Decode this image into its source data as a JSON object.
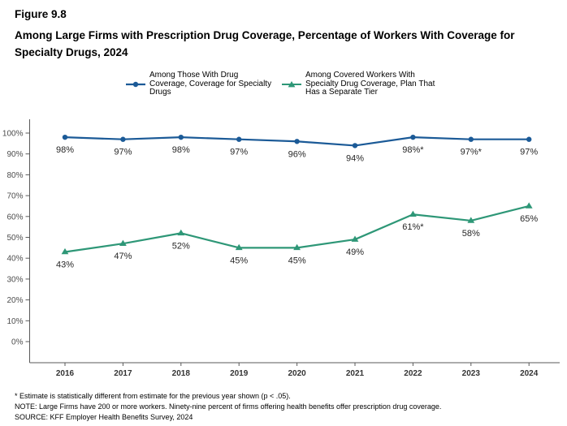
{
  "figure": {
    "label": "Figure 9.8",
    "title": "Among Large Firms with Prescription Drug Coverage, Percentage of Workers With Coverage for Specialty Drugs, 2024"
  },
  "legend": [
    {
      "label": "Among Those With Drug Coverage, Coverage for Specialty Drugs",
      "color": "#1b5a97",
      "marker": "circle"
    },
    {
      "label": "Among Covered Workers With Specialty Drug Coverage, Plan That Has a Separate Tier",
      "color": "#2e9777",
      "marker": "triangle"
    }
  ],
  "chart_data": {
    "type": "line",
    "title": "Among Large Firms with Prescription Drug Coverage, Percentage of Workers With Coverage for Specialty Drugs, 2024",
    "xlabel": "",
    "ylabel": "",
    "x": [
      2016,
      2017,
      2018,
      2019,
      2020,
      2021,
      2022,
      2023,
      2024
    ],
    "series": [
      {
        "name": "Among Those With Drug Coverage, Coverage for Specialty Drugs",
        "values": [
          98,
          97,
          98,
          97,
          96,
          94,
          98,
          97,
          97
        ],
        "labels": [
          "98%",
          "97%",
          "98%",
          "97%",
          "96%",
          "94%",
          "98%*",
          "97%*",
          "97%"
        ],
        "color": "#1b5a97",
        "marker": "circle"
      },
      {
        "name": "Among Covered Workers With Specialty Drug Coverage, Plan That Has a Separate Tier",
        "values": [
          43,
          47,
          52,
          45,
          45,
          49,
          61,
          58,
          65
        ],
        "labels": [
          "43%",
          "47%",
          "52%",
          "45%",
          "45%",
          "49%",
          "61%*",
          "58%",
          "65%"
        ],
        "color": "#2e9777",
        "marker": "triangle"
      }
    ],
    "ylim": [
      0,
      100
    ],
    "yticks": [
      "0%",
      "10%",
      "20%",
      "30%",
      "40%",
      "50%",
      "60%",
      "70%",
      "80%",
      "90%",
      "100%"
    ],
    "grid": false,
    "legend_position": "top"
  },
  "footnotes": [
    "* Estimate is statistically different from estimate for the previous year shown (p < .05).",
    "NOTE: Large Firms have 200 or more workers. Ninety-nine percent of firms offering health benefits offer prescription drug coverage.",
    "SOURCE: KFF Employer Health Benefits Survey, 2024"
  ]
}
